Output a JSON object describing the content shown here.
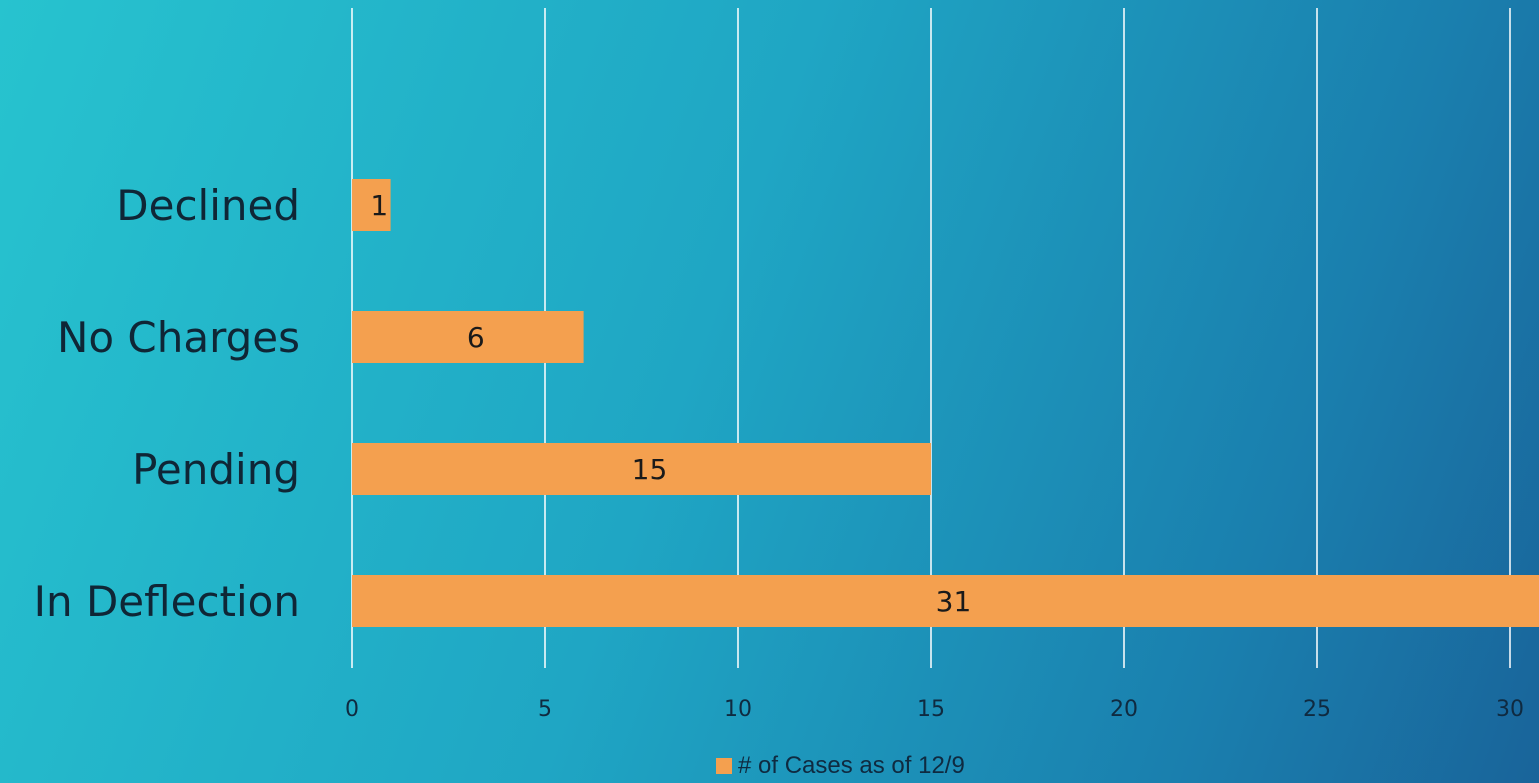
{
  "chart_data": {
    "type": "bar",
    "orientation": "horizontal",
    "categories": [
      "Declined",
      "No Charges",
      "Pending",
      "In Deflection"
    ],
    "series": [
      {
        "name": "# of Cases as of 12/9",
        "values": [
          1,
          6,
          15,
          31
        ],
        "color": "#f4a04f"
      }
    ],
    "data_labels": [
      "1",
      "6",
      "15",
      "31"
    ],
    "x_ticks": [
      "0",
      "5",
      "10",
      "15",
      "20",
      "25",
      "30"
    ],
    "xlim": [
      0,
      30
    ],
    "grid": "vertical",
    "legend": "bottom",
    "title": "",
    "xlabel": "",
    "ylabel": ""
  },
  "legend": {
    "label": "# of Cases as of 12/9"
  },
  "colors": {
    "bar": "#f4a04f",
    "grid": "#ffffff",
    "background_start": "#27c3cf",
    "background_end": "#19649a"
  }
}
